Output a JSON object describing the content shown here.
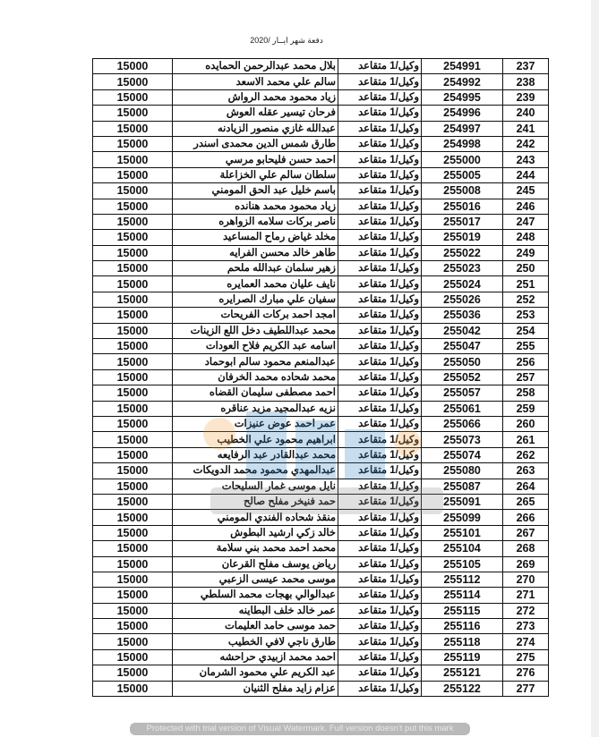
{
  "title": "دفعة شهر ايــار /2020",
  "watermark_text": "Protected with trial version of Visual Watermark. Full version doesn't put this mark",
  "rows": [
    {
      "num": "237",
      "id": "254991",
      "type": "وكيل/1 متقاعد",
      "name": "بلال محمد عبدالرحمن الحمايده",
      "amount": "15000"
    },
    {
      "num": "238",
      "id": "254992",
      "type": "وكيل/1 متقاعد",
      "name": "سالم علي محمد الاسعد",
      "amount": "15000"
    },
    {
      "num": "239",
      "id": "254995",
      "type": "وكيل/1 متقاعد",
      "name": "زياد محمود محمد الرواش",
      "amount": "15000"
    },
    {
      "num": "240",
      "id": "254996",
      "type": "وكيل/1 متقاعد",
      "name": "فرحان تيسير عقله العوش",
      "amount": "15000"
    },
    {
      "num": "241",
      "id": "254997",
      "type": "وكيل/1 متقاعد",
      "name": "عبدالله غازي منصور الزيادنه",
      "amount": "15000"
    },
    {
      "num": "242",
      "id": "254998",
      "type": "وكيل/1 متقاعد",
      "name": "طارق شمس الدين محمدى اسندر",
      "amount": "15000"
    },
    {
      "num": "243",
      "id": "255000",
      "type": "وكيل/1 متقاعد",
      "name": "احمد حسن فليحابو مرسي",
      "amount": "15000"
    },
    {
      "num": "244",
      "id": "255005",
      "type": "وكيل/1 متقاعد",
      "name": "سلطان سالم علي الخزاعلة",
      "amount": "15000"
    },
    {
      "num": "245",
      "id": "255008",
      "type": "وكيل/1 متقاعد",
      "name": "باسم خليل عبد الحق المومني",
      "amount": "15000"
    },
    {
      "num": "246",
      "id": "255016",
      "type": "وكيل/1 متقاعد",
      "name": "زياد محمود محمد هنانده",
      "amount": "15000"
    },
    {
      "num": "247",
      "id": "255017",
      "type": "وكيل/1 متقاعد",
      "name": "ناصر بركات سلامه الزواهره",
      "amount": "15000"
    },
    {
      "num": "248",
      "id": "255019",
      "type": "وكيل/1 متقاعد",
      "name": "مخلد غياض رماح المساعيد",
      "amount": "15000"
    },
    {
      "num": "249",
      "id": "255022",
      "type": "وكيل/1 متقاعد",
      "name": "طاهر خالد محسن الفرايه",
      "amount": "15000"
    },
    {
      "num": "250",
      "id": "255023",
      "type": "وكيل/1 متقاعد",
      "name": "زهير سلمان عبدالله ملحم",
      "amount": "15000"
    },
    {
      "num": "251",
      "id": "255024",
      "type": "وكيل/1 متقاعد",
      "name": "نايف عليان محمد العمايره",
      "amount": "15000"
    },
    {
      "num": "252",
      "id": "255026",
      "type": "وكيل/1 متقاعد",
      "name": "سفيان علي مبارك الصرايره",
      "amount": "15000"
    },
    {
      "num": "253",
      "id": "255036",
      "type": "وكيل/1 متقاعد",
      "name": "امجد احمد بركات الفريحات",
      "amount": "15000"
    },
    {
      "num": "254",
      "id": "255042",
      "type": "وكيل/1 متقاعد",
      "name": "محمد عبداللطيف دخل اللع الزينات",
      "amount": "15000"
    },
    {
      "num": "255",
      "id": "255047",
      "type": "وكيل/1 متقاعد",
      "name": "اسامه عبد الكريم فلاح العودات",
      "amount": "15000"
    },
    {
      "num": "256",
      "id": "255050",
      "type": "وكيل/1 متقاعد",
      "name": "عبدالمنعم محمود سالم ابوحماد",
      "amount": "15000"
    },
    {
      "num": "257",
      "id": "255052",
      "type": "وكيل/1 متقاعد",
      "name": "محمد شحاده محمد الخرفان",
      "amount": "15000"
    },
    {
      "num": "258",
      "id": "255057",
      "type": "وكيل/1 متقاعد",
      "name": "احمد مصطفى سليمان القضاه",
      "amount": "15000"
    },
    {
      "num": "259",
      "id": "255061",
      "type": "وكيل/1 متقاعد",
      "name": "نزيه عبدالمجيد مزيد عناقره",
      "amount": "15000"
    },
    {
      "num": "260",
      "id": "255066",
      "type": "وكيل/1 متقاعد",
      "name": "عمر احمد عوض عنيزات",
      "amount": "15000"
    },
    {
      "num": "261",
      "id": "255073",
      "type": "وكيل/1 متقاعد",
      "name": "ابراهيم محمود علي الخطيب",
      "amount": "15000"
    },
    {
      "num": "262",
      "id": "255074",
      "type": "وكيل/1 متقاعد",
      "name": "محمد عبدالقادر عبد الرفايعه",
      "amount": "15000"
    },
    {
      "num": "263",
      "id": "255080",
      "type": "وكيل/1 متقاعد",
      "name": "عبدالمهدي محمود محمد الدويكات",
      "amount": "15000"
    },
    {
      "num": "264",
      "id": "255087",
      "type": "وكيل/1 متقاعد",
      "name": "نايل موسى غمار السليحات",
      "amount": "15000"
    },
    {
      "num": "265",
      "id": "255091",
      "type": "وكيل/1 متقاعد",
      "name": "حمد فنيخر مفلح صالح",
      "amount": "15000"
    },
    {
      "num": "266",
      "id": "255099",
      "type": "وكيل/1 متقاعد",
      "name": "منقذ شحاده الفندي المومني",
      "amount": "15000"
    },
    {
      "num": "267",
      "id": "255101",
      "type": "وكيل/1 متقاعد",
      "name": "خالد زكي ارشيد البطوش",
      "amount": "15000"
    },
    {
      "num": "268",
      "id": "255104",
      "type": "وكيل/1 متقاعد",
      "name": "محمد احمد محمد بني سلامة",
      "amount": "15000"
    },
    {
      "num": "269",
      "id": "255105",
      "type": "وكيل/1 متقاعد",
      "name": "رياض يوسف مفلح القرعان",
      "amount": "15000"
    },
    {
      "num": "270",
      "id": "255112",
      "type": "وكيل/1 متقاعد",
      "name": "موسى محمد عيسى الزعبي",
      "amount": "15000"
    },
    {
      "num": "271",
      "id": "255114",
      "type": "وكيل/1 متقاعد",
      "name": "عبدالوالي بهجات محمد السلطي",
      "amount": "15000"
    },
    {
      "num": "272",
      "id": "255115",
      "type": "وكيل/1 متقاعد",
      "name": "عمر خالد خلف البطاينه",
      "amount": "15000"
    },
    {
      "num": "273",
      "id": "255116",
      "type": "وكيل/1 متقاعد",
      "name": "حمد موسى حامد العليمات",
      "amount": "15000"
    },
    {
      "num": "274",
      "id": "255118",
      "type": "وكيل/1 متقاعد",
      "name": "طارق ناجي لافي الخطيب",
      "amount": "15000"
    },
    {
      "num": "275",
      "id": "255119",
      "type": "وكيل/1 متقاعد",
      "name": "احمد محمد ازبيدي حراحشه",
      "amount": "15000"
    },
    {
      "num": "276",
      "id": "255121",
      "type": "وكيل/1 متقاعد",
      "name": "عبد الكريم علي محمود الشرمان",
      "amount": "15000"
    },
    {
      "num": "277",
      "id": "255122",
      "type": "وكيل/1 متقاعد",
      "name": "عزام زايد مفلح الثنيان",
      "amount": "15000"
    }
  ]
}
